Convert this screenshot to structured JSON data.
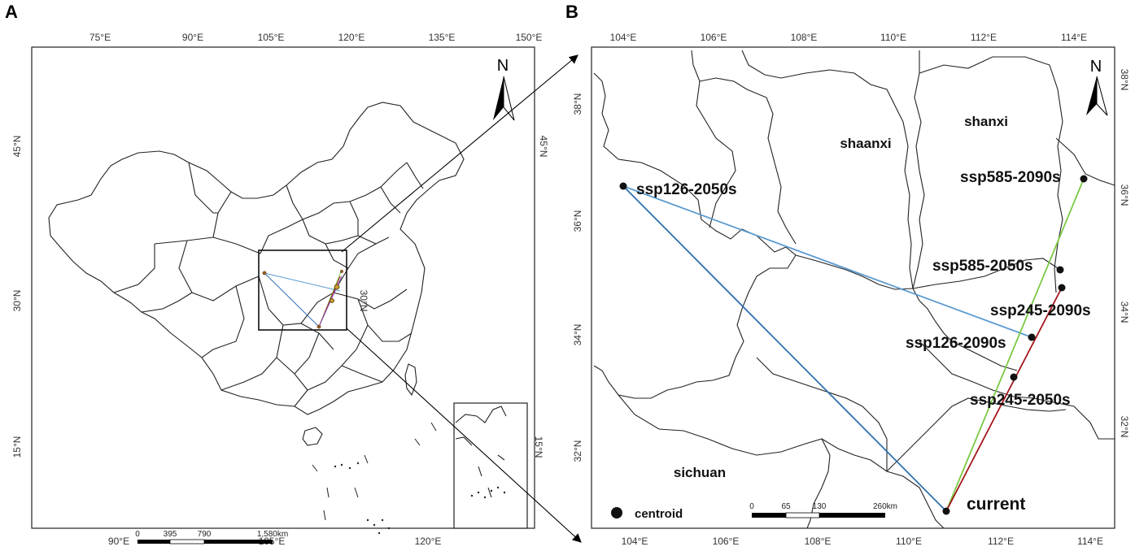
{
  "panelA": {
    "letter": "A",
    "top_ticks": [
      "75°E",
      "90°E",
      "105°E",
      "120°E",
      "135°E",
      "150°E"
    ],
    "bottom_ticks": [
      "90°E",
      "105°E",
      "120°E"
    ],
    "left_ticks": [
      "45°N",
      "30°N",
      "15°N"
    ],
    "right_ticks": [
      "45°N",
      "30°N",
      "15°N"
    ],
    "north": "N",
    "scale_labels": [
      "0",
      "395",
      "790",
      "1,580km"
    ]
  },
  "panelB": {
    "letter": "B",
    "top_ticks": [
      "104°E",
      "106°E",
      "108°E",
      "110°E",
      "112°E",
      "114°E"
    ],
    "bottom_ticks": [
      "104°E",
      "106°E",
      "108°E",
      "110°E",
      "112°E",
      "114°E"
    ],
    "left_ticks": [
      "38°N",
      "36°N",
      "34°N",
      "32°N"
    ],
    "right_ticks": [
      "38°N",
      "36°N",
      "34°N",
      "32°N"
    ],
    "north": "N",
    "provinces": {
      "shaanxi": "shaanxi",
      "shanxi": "shanxi",
      "sichuan": "sichuan"
    },
    "points": {
      "current": "current",
      "ssp126_2050": "ssp126-2050s",
      "ssp126_2090": "ssp126-2090s",
      "ssp245_2050": "ssp245-2050s",
      "ssp245_2090": "ssp245-2090s",
      "ssp585_2050": "ssp585-2050s",
      "ssp585_2090": "ssp585-2090s"
    },
    "legend": "centroid",
    "scale_labels": [
      "0",
      "65",
      "130",
      "260km"
    ],
    "colors": {
      "ssp126": "#2e6fb3",
      "ssp126_return": "#5c9bd1",
      "ssp245": "#a3171b",
      "ssp585": "#7ac943"
    }
  }
}
